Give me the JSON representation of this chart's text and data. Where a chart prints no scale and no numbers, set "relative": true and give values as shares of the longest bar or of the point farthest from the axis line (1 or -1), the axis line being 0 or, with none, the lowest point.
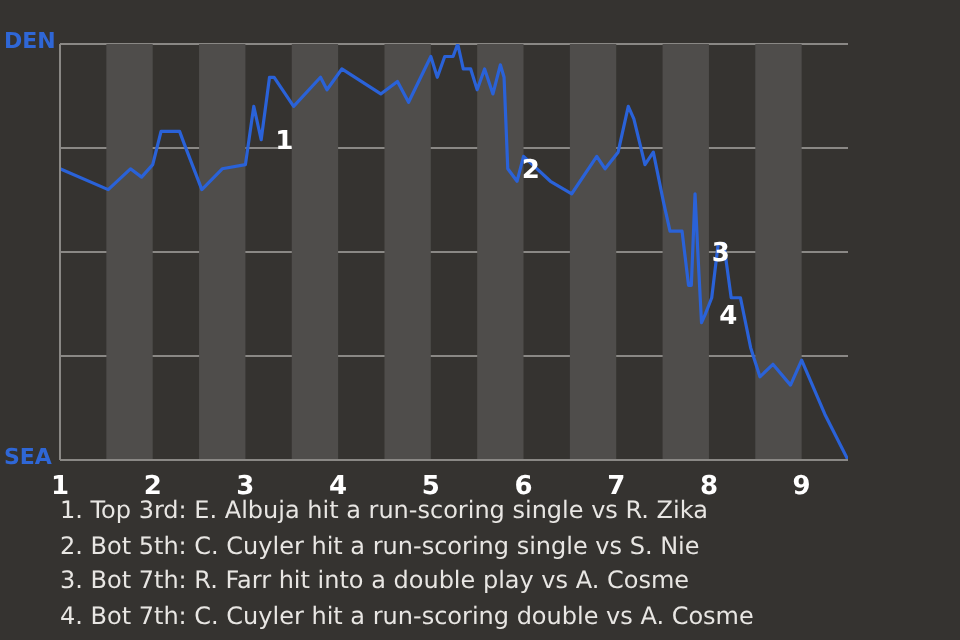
{
  "chart_data": {
    "type": "line",
    "relative": true,
    "x": [
      1,
      1.52,
      1.76,
      1.88,
      2,
      2.09,
      2.29,
      2.34,
      2.53,
      2.75,
      3,
      3.09,
      3.17,
      3.26,
      3.31,
      3.52,
      3.81,
      3.88,
      4.04,
      4.46,
      4.64,
      4.76,
      5,
      5.07,
      5.15,
      5.24,
      5.29,
      5.35,
      5.43,
      5.5,
      5.58,
      5.67,
      5.75,
      5.79,
      5.83,
      5.93,
      6,
      6.29,
      6.52,
      6.79,
      6.88,
      7.02,
      7.13,
      7.19,
      7.31,
      7.4,
      7.51,
      7.58,
      7.71,
      7.78,
      7.81,
      7.85,
      7.88,
      7.92,
      7.96,
      8.03,
      8.1,
      8.16,
      8.24,
      8.34,
      8.45,
      8.55,
      8.69,
      8.88,
      9,
      9.25,
      9.5
    ],
    "series": [
      {
        "color": "#2a62d8",
        "values": [
          0.7,
          0.65,
          0.7,
          0.68,
          0.71,
          0.79,
          0.79,
          0.76,
          0.65,
          0.7,
          0.71,
          0.85,
          0.77,
          0.92,
          0.92,
          0.85,
          0.92,
          0.89,
          0.94,
          0.88,
          0.91,
          0.86,
          0.97,
          0.92,
          0.97,
          0.97,
          1,
          0.94,
          0.94,
          0.89,
          0.94,
          0.88,
          0.95,
          0.92,
          0.7,
          0.67,
          0.73,
          0.67,
          0.64,
          0.73,
          0.7,
          0.74,
          0.85,
          0.82,
          0.71,
          0.74,
          0.62,
          0.55,
          0.55,
          0.42,
          0.42,
          0.64,
          0.5,
          0.33,
          0.35,
          0.39,
          0.52,
          0.52,
          0.39,
          0.39,
          0.27,
          0.2,
          0.23,
          0.18,
          0.24,
          0.11,
          0
        ]
      }
    ],
    "xlim": [
      1,
      9.5
    ],
    "xticks": [
      1,
      2,
      3,
      4,
      5,
      6,
      7,
      8,
      9
    ],
    "grid": "y",
    "marker": "none",
    "line_style": "solid",
    "bands": [
      {
        "axis": "x",
        "from": 1.5,
        "to": 2,
        "color": "#4f4d4b"
      },
      {
        "axis": "x",
        "from": 2.5,
        "to": 3,
        "color": "#4f4d4b"
      },
      {
        "axis": "x",
        "from": 3.5,
        "to": 4,
        "color": "#4f4d4b"
      },
      {
        "axis": "x",
        "from": 4.5,
        "to": 5,
        "color": "#4f4d4b"
      },
      {
        "axis": "x",
        "from": 5.5,
        "to": 6,
        "color": "#4f4d4b"
      },
      {
        "axis": "x",
        "from": 6.5,
        "to": 7,
        "color": "#4f4d4b"
      },
      {
        "axis": "x",
        "from": 7.5,
        "to": 8,
        "color": "#4f4d4b"
      },
      {
        "axis": "x",
        "from": 8.5,
        "to": 9,
        "color": "#4f4d4b"
      }
    ],
    "annotations": [
      {
        "text": "1",
        "x": 3.17,
        "y": 0.77
      },
      {
        "text": "2",
        "x": 5.83,
        "y": 0.7
      },
      {
        "text": "3",
        "x": 7.88,
        "y": 0.5
      },
      {
        "text": "4",
        "x": 7.96,
        "y": 0.35
      },
      "DEN",
      "SEA",
      "1. Top 3rd: E. Albuja hit a run-scoring single vs R. Zika",
      "2. Bot 5th: C. Cuyler hit a run-scoring single vs S. Nie",
      "3. Bot 7th: R. Farr hit into a double play vs A. Cosme",
      "4. Bot 7th: C. Cuyler hit a run-scoring double vs A. Cosme"
    ]
  }
}
